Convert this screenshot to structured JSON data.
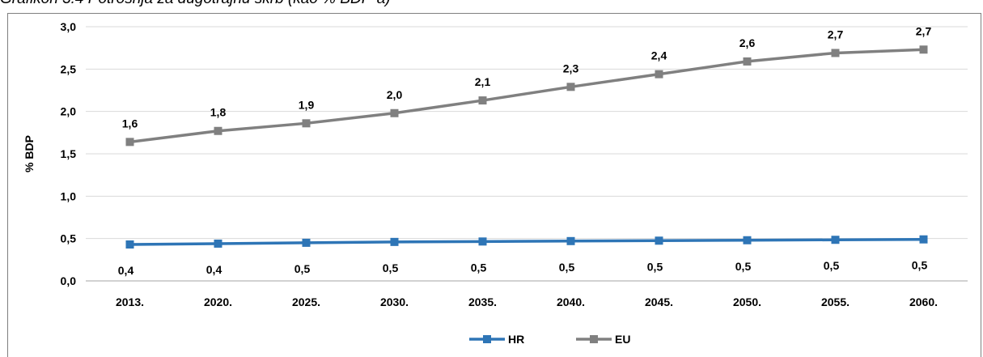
{
  "caption": "Grafikon 3.4 Potrošnja za dugotrajnu skrb (kao % BDP-a)",
  "chart_data": {
    "type": "line",
    "title": "",
    "xlabel": "",
    "ylabel": "% BDP",
    "ylim": [
      0,
      3.0
    ],
    "y_ticks": [
      "0,0",
      "0,5",
      "1,0",
      "1,5",
      "2,0",
      "2,5",
      "3,0"
    ],
    "grid": "horizontal",
    "legend_position": "bottom",
    "categories": [
      "2013.",
      "2020.",
      "2025.",
      "2030.",
      "2035.",
      "2040.",
      "2045.",
      "2050.",
      "2055.",
      "2060."
    ],
    "series": [
      {
        "name": "HR",
        "color": "#2e75b6",
        "values": [
          0.43,
          0.44,
          0.45,
          0.46,
          0.465,
          0.47,
          0.475,
          0.48,
          0.485,
          0.49
        ],
        "labels": [
          "0,4",
          "0,4",
          "0,5",
          "0,5",
          "0,5",
          "0,5",
          "0,5",
          "0,5",
          "0,5",
          "0,5"
        ]
      },
      {
        "name": "EU",
        "color": "#808080",
        "values": [
          1.64,
          1.77,
          1.86,
          1.98,
          2.13,
          2.29,
          2.44,
          2.59,
          2.69,
          2.73
        ],
        "labels": [
          "1,6",
          "1,8",
          "1,9",
          "2,0",
          "2,1",
          "2,3",
          "2,4",
          "2,6",
          "2,7",
          "2,7"
        ]
      }
    ]
  }
}
